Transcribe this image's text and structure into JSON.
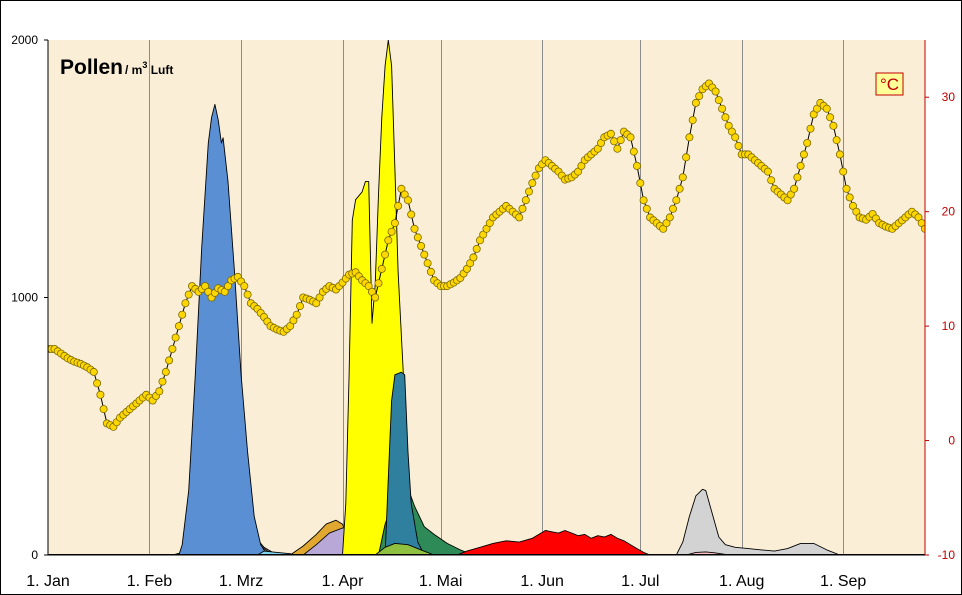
{
  "chart_data": {
    "type": "area",
    "title": "Pollen",
    "title_unit": "/ m",
    "title_unit_sup": "3",
    "title_unit_suffix": " Luft",
    "right_axis_label": "°C",
    "y_left": {
      "ticks": [
        "0",
        "1000",
        "2000"
      ],
      "range": [
        0,
        2000
      ]
    },
    "y_right": {
      "ticks": [
        "-10",
        "0",
        "10",
        "20",
        "30"
      ],
      "range": [
        -10,
        35
      ]
    },
    "x_months": [
      "1. Jan",
      "1. Feb",
      "1. Mrz",
      "1. Apr",
      "1. Mai",
      "1. Jun",
      "1. Jul",
      "1. Aug",
      "1. Sep"
    ],
    "x_month_start_days": [
      0,
      31,
      59,
      90,
      120,
      151,
      181,
      212,
      243
    ],
    "x_range": [
      0,
      268
    ],
    "grid": "vertical",
    "colors": {
      "background": "#fbeed6",
      "frame": "#000000",
      "right_axis": "#c00000",
      "temperature_dots": "#ffd700",
      "temperature_line": "#000000"
    },
    "series": [
      {
        "color": "#00ffff",
        "points": [
          [
            38,
            0
          ],
          [
            41,
            10
          ],
          [
            44,
            40
          ],
          [
            47,
            55
          ],
          [
            50,
            50
          ],
          [
            52,
            20
          ],
          [
            54,
            0
          ]
        ]
      },
      {
        "color": "#d4c8e8",
        "points": [
          [
            52,
            0
          ],
          [
            54,
            30
          ],
          [
            56,
            75
          ],
          [
            58,
            110
          ],
          [
            60,
            120
          ],
          [
            62,
            90
          ],
          [
            66,
            30
          ],
          [
            70,
            0
          ]
        ]
      },
      {
        "color": "#c9a227",
        "points": [
          [
            52,
            0
          ],
          [
            54,
            30
          ],
          [
            57,
            60
          ],
          [
            60,
            70
          ],
          [
            63,
            60
          ],
          [
            66,
            25
          ],
          [
            69,
            0
          ]
        ]
      },
      {
        "color": "#5b8fd4",
        "points": [
          [
            40,
            0
          ],
          [
            41,
            40
          ],
          [
            43,
            250
          ],
          [
            45,
            700
          ],
          [
            47,
            1200
          ],
          [
            49,
            1600
          ],
          [
            50,
            1700
          ],
          [
            51,
            1750
          ],
          [
            52,
            1690
          ],
          [
            53,
            1600
          ],
          [
            53.5,
            1620
          ],
          [
            55,
            1450
          ],
          [
            57,
            1100
          ],
          [
            59,
            700
          ],
          [
            61,
            400
          ],
          [
            63,
            150
          ],
          [
            65,
            40
          ],
          [
            67,
            0
          ]
        ]
      },
      {
        "color": "#7fd6f0",
        "points": [
          [
            64,
            0
          ],
          [
            66,
            15
          ],
          [
            70,
            10
          ],
          [
            74,
            5
          ],
          [
            76,
            0
          ]
        ]
      },
      {
        "color": "#e0a830",
        "points": [
          [
            74,
            0
          ],
          [
            78,
            35
          ],
          [
            82,
            80
          ],
          [
            85,
            120
          ],
          [
            88,
            135
          ],
          [
            90,
            120
          ],
          [
            92,
            60
          ],
          [
            95,
            20
          ],
          [
            98,
            0
          ]
        ]
      },
      {
        "color": "#b8a8d8",
        "points": [
          [
            78,
            0
          ],
          [
            82,
            40
          ],
          [
            86,
            85
          ],
          [
            90,
            105
          ],
          [
            93,
            110
          ],
          [
            96,
            80
          ],
          [
            99,
            30
          ],
          [
            102,
            0
          ]
        ]
      },
      {
        "color": "#ffff00",
        "points": [
          [
            90,
            0
          ],
          [
            91,
            200
          ],
          [
            92,
            700
          ],
          [
            93,
            1300
          ],
          [
            94,
            1380
          ],
          [
            96,
            1410
          ],
          [
            97,
            1450
          ],
          [
            98,
            1450
          ],
          [
            99,
            900
          ],
          [
            100,
            1050
          ],
          [
            101,
            1400
          ],
          [
            102,
            1700
          ],
          [
            103,
            1900
          ],
          [
            104,
            2000
          ],
          [
            105,
            1900
          ],
          [
            106,
            1500
          ],
          [
            107,
            1100
          ],
          [
            108,
            850
          ],
          [
            109,
            600
          ],
          [
            110,
            350
          ],
          [
            111,
            150
          ],
          [
            112,
            40
          ],
          [
            113,
            0
          ]
        ]
      },
      {
        "color": "#2e8b57",
        "points": [
          [
            101,
            0
          ],
          [
            103,
            120
          ],
          [
            106,
            230
          ],
          [
            108,
            270
          ],
          [
            110,
            260
          ],
          [
            112,
            190
          ],
          [
            115,
            110
          ],
          [
            118,
            80
          ],
          [
            122,
            45
          ],
          [
            126,
            20
          ],
          [
            130,
            0
          ]
        ]
      },
      {
        "color": "#2f7f9f",
        "points": [
          [
            103,
            0
          ],
          [
            104,
            300
          ],
          [
            105,
            600
          ],
          [
            106,
            700
          ],
          [
            108,
            710
          ],
          [
            109,
            700
          ],
          [
            110,
            400
          ],
          [
            111,
            200
          ],
          [
            113,
            50
          ],
          [
            115,
            0
          ]
        ]
      },
      {
        "color": "#90c040",
        "points": [
          [
            100,
            0
          ],
          [
            103,
            30
          ],
          [
            106,
            45
          ],
          [
            110,
            40
          ],
          [
            114,
            20
          ],
          [
            118,
            0
          ]
        ]
      },
      {
        "color": "#ff0000",
        "points": [
          [
            125,
            0
          ],
          [
            128,
            15
          ],
          [
            132,
            30
          ],
          [
            136,
            45
          ],
          [
            140,
            55
          ],
          [
            144,
            50
          ],
          [
            148,
            65
          ],
          [
            150,
            80
          ],
          [
            152,
            95
          ],
          [
            154,
            90
          ],
          [
            156,
            85
          ],
          [
            158,
            95
          ],
          [
            160,
            85
          ],
          [
            162,
            75
          ],
          [
            164,
            80
          ],
          [
            166,
            65
          ],
          [
            168,
            75
          ],
          [
            170,
            70
          ],
          [
            172,
            80
          ],
          [
            174,
            65
          ],
          [
            176,
            55
          ],
          [
            178,
            40
          ],
          [
            180,
            25
          ],
          [
            182,
            10
          ],
          [
            184,
            0
          ]
        ]
      },
      {
        "color": "#d3d3d3",
        "points": [
          [
            192,
            0
          ],
          [
            194,
            50
          ],
          [
            196,
            150
          ],
          [
            198,
            230
          ],
          [
            200,
            255
          ],
          [
            201,
            250
          ],
          [
            203,
            160
          ],
          [
            205,
            70
          ],
          [
            207,
            40
          ],
          [
            210,
            30
          ],
          [
            214,
            25
          ],
          [
            218,
            20
          ],
          [
            222,
            15
          ],
          [
            226,
            25
          ],
          [
            230,
            45
          ],
          [
            234,
            45
          ],
          [
            238,
            20
          ],
          [
            242,
            0
          ]
        ]
      },
      {
        "color": "#ffc0c0",
        "points": [
          [
            195,
            0
          ],
          [
            198,
            10
          ],
          [
            201,
            12
          ],
          [
            204,
            8
          ],
          [
            208,
            0
          ]
        ]
      }
    ],
    "temperature": [
      [
        0,
        8
      ],
      [
        2,
        8
      ],
      [
        4,
        7.6
      ],
      [
        6,
        7.2
      ],
      [
        8,
        6.9
      ],
      [
        10,
        6.7
      ],
      [
        12,
        6.4
      ],
      [
        14,
        6
      ],
      [
        16,
        4
      ],
      [
        18,
        1.5
      ],
      [
        20,
        1.2
      ],
      [
        22,
        2
      ],
      [
        24,
        2.5
      ],
      [
        26,
        3
      ],
      [
        28,
        3.5
      ],
      [
        30,
        4
      ],
      [
        32,
        3.5
      ],
      [
        34,
        4.3
      ],
      [
        36,
        6
      ],
      [
        38,
        8
      ],
      [
        40,
        10
      ],
      [
        42,
        12
      ],
      [
        44,
        13.5
      ],
      [
        46,
        13
      ],
      [
        48,
        13.5
      ],
      [
        50,
        12.5
      ],
      [
        52,
        13.3
      ],
      [
        54,
        13
      ],
      [
        56,
        14
      ],
      [
        58,
        14.3
      ],
      [
        60,
        13.5
      ],
      [
        62,
        12
      ],
      [
        64,
        11.5
      ],
      [
        66,
        10.8
      ],
      [
        68,
        10
      ],
      [
        70,
        9.7
      ],
      [
        72,
        9.5
      ],
      [
        74,
        10
      ],
      [
        76,
        11
      ],
      [
        78,
        12.5
      ],
      [
        80,
        12.3
      ],
      [
        82,
        12
      ],
      [
        84,
        13
      ],
      [
        86,
        13.5
      ],
      [
        88,
        13.2
      ],
      [
        90,
        13.8
      ],
      [
        92,
        14.5
      ],
      [
        94,
        14.7
      ],
      [
        96,
        14
      ],
      [
        98,
        13.5
      ],
      [
        100,
        12.5
      ],
      [
        102,
        15
      ],
      [
        104,
        17.5
      ],
      [
        106,
        19
      ],
      [
        108,
        22
      ],
      [
        110,
        21
      ],
      [
        112,
        18.5
      ],
      [
        114,
        17
      ],
      [
        116,
        15.5
      ],
      [
        118,
        14
      ],
      [
        120,
        13.5
      ],
      [
        122,
        13.5
      ],
      [
        124,
        13.8
      ],
      [
        126,
        14.2
      ],
      [
        128,
        15
      ],
      [
        130,
        16
      ],
      [
        132,
        17.5
      ],
      [
        134,
        18.5
      ],
      [
        136,
        19.5
      ],
      [
        138,
        20
      ],
      [
        140,
        20.5
      ],
      [
        142,
        20
      ],
      [
        144,
        19.5
      ],
      [
        146,
        21
      ],
      [
        148,
        22.5
      ],
      [
        150,
        23.8
      ],
      [
        152,
        24.5
      ],
      [
        154,
        24
      ],
      [
        156,
        23.5
      ],
      [
        158,
        22.8
      ],
      [
        160,
        23
      ],
      [
        162,
        23.5
      ],
      [
        164,
        24.5
      ],
      [
        166,
        25
      ],
      [
        168,
        25.5
      ],
      [
        170,
        26.5
      ],
      [
        172,
        26.8
      ],
      [
        174,
        25.5
      ],
      [
        176,
        27
      ],
      [
        178,
        26.5
      ],
      [
        180,
        24
      ],
      [
        182,
        21
      ],
      [
        184,
        19.5
      ],
      [
        186,
        19
      ],
      [
        188,
        18.5
      ],
      [
        190,
        19.5
      ],
      [
        192,
        21
      ],
      [
        194,
        23
      ],
      [
        196,
        26.5
      ],
      [
        198,
        29.5
      ],
      [
        200,
        30.7
      ],
      [
        202,
        31.2
      ],
      [
        204,
        30.5
      ],
      [
        206,
        29
      ],
      [
        208,
        27.5
      ],
      [
        210,
        26.5
      ],
      [
        212,
        25
      ],
      [
        214,
        25
      ],
      [
        216,
        24.5
      ],
      [
        218,
        24
      ],
      [
        220,
        23.5
      ],
      [
        222,
        22
      ],
      [
        224,
        21.5
      ],
      [
        226,
        21
      ],
      [
        228,
        22
      ],
      [
        230,
        24
      ],
      [
        232,
        26
      ],
      [
        234,
        28.5
      ],
      [
        236,
        29.5
      ],
      [
        238,
        29
      ],
      [
        240,
        27.5
      ],
      [
        242,
        25
      ],
      [
        244,
        22
      ],
      [
        246,
        20.5
      ],
      [
        248,
        19.5
      ],
      [
        250,
        19.3
      ],
      [
        252,
        19.8
      ],
      [
        254,
        19
      ],
      [
        256,
        18.7
      ],
      [
        258,
        18.5
      ],
      [
        260,
        19
      ],
      [
        262,
        19.5
      ],
      [
        264,
        20
      ],
      [
        266,
        19.5
      ],
      [
        268,
        18.5
      ],
      [
        270,
        17
      ]
    ]
  }
}
